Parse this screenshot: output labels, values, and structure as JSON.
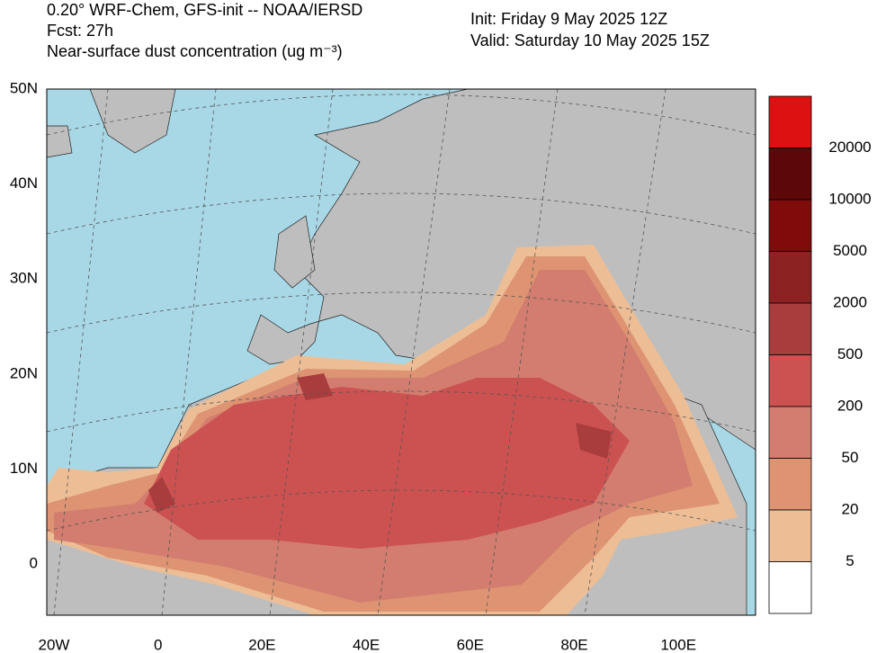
{
  "header": {
    "title": "0.20° WRF-Chem, GFS-init -- NOAA/IERSD",
    "forecast": "Fcst: 27h",
    "field": "Near-surface dust concentration (ug m⁻³)",
    "init": "Init: Friday 9 May 2025  12Z",
    "valid": "Valid: Saturday 10 May 2025  15Z"
  },
  "axes": {
    "lat_labels": [
      "50N",
      "40N",
      "30N",
      "20N",
      "10N",
      "0"
    ],
    "lon_labels": [
      "20W",
      "0",
      "20E",
      "40E",
      "60E",
      "80E",
      "100E"
    ]
  },
  "colorbar": {
    "colors": [
      "#dd1111",
      "#5c0808",
      "#7f0b0b",
      "#8c2222",
      "#a93c3c",
      "#cc5252",
      "#d27d6f",
      "#de9472",
      "#edbe96",
      "#ffffff"
    ],
    "labels": [
      "20000",
      "10000",
      "5000",
      "2000",
      "500",
      "200",
      "50",
      "20",
      "5"
    ]
  }
}
